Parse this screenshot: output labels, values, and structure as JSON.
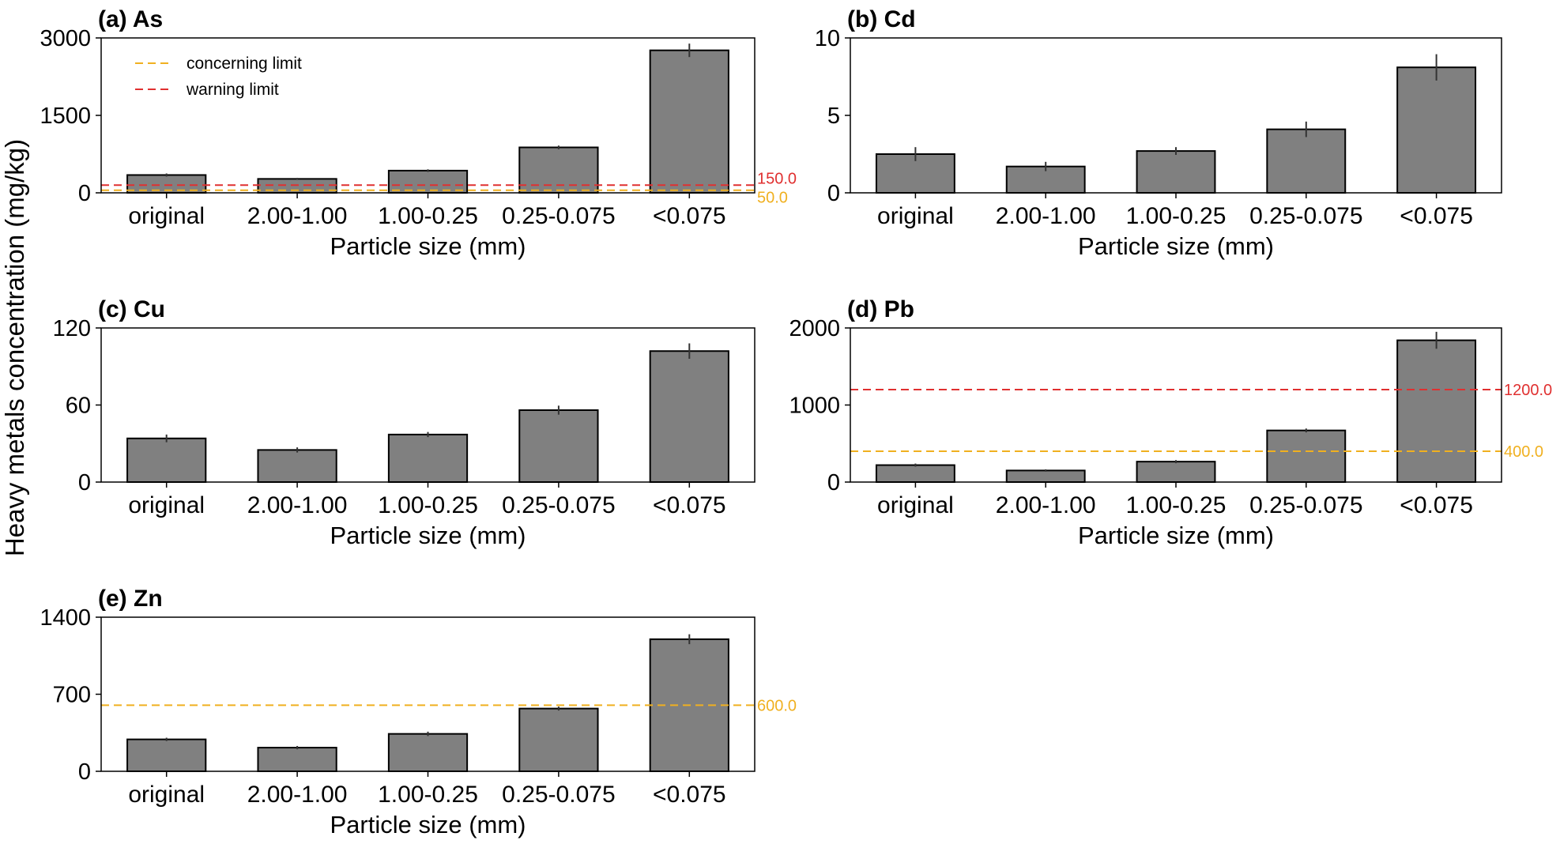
{
  "figure": {
    "ylabel": "Heavy metals concentration (mg/kg)"
  },
  "colors": {
    "bar": "#808080",
    "bar_edge": "#000000",
    "error_bar": "#333333",
    "concerning": "#f0b020",
    "warning": "#e03030"
  },
  "legend": {
    "items": [
      {
        "label": "concerning limit",
        "color": "#f0b020"
      },
      {
        "label": "warning limit",
        "color": "#e03030"
      }
    ]
  },
  "chart_data": [
    {
      "type": "bar",
      "title": "(a) As",
      "categories": [
        "original",
        "2.00-1.00",
        "1.00-0.25",
        "0.25-0.075",
        "<0.075"
      ],
      "values": [
        345,
        270,
        430,
        880,
        2760
      ],
      "errors": [
        30,
        20,
        25,
        35,
        130
      ],
      "xlabel": "Particle size (mm)",
      "ylim": [
        0,
        3000
      ],
      "yticks": [
        0,
        1500,
        3000
      ],
      "limits": [
        {
          "name": "warning limit",
          "value": 150,
          "label": "150.0",
          "color": "#e03030"
        },
        {
          "name": "concerning limit",
          "value": 50,
          "label": "50.0",
          "color": "#f0b020"
        }
      ]
    },
    {
      "type": "bar",
      "title": "(b) Cd",
      "categories": [
        "original",
        "2.00-1.00",
        "1.00-0.25",
        "0.25-0.075",
        "<0.075"
      ],
      "values": [
        2.5,
        1.7,
        2.7,
        4.1,
        8.1
      ],
      "errors": [
        0.45,
        0.3,
        0.25,
        0.5,
        0.85
      ],
      "xlabel": "Particle size (mm)",
      "ylim": [
        0,
        10
      ],
      "yticks": [
        0,
        5,
        10
      ],
      "limits": []
    },
    {
      "type": "bar",
      "title": "(c) Cu",
      "categories": [
        "original",
        "2.00-1.00",
        "1.00-0.25",
        "0.25-0.075",
        "<0.075"
      ],
      "values": [
        34,
        25,
        37,
        56,
        102
      ],
      "errors": [
        3,
        2,
        2,
        3.5,
        6
      ],
      "xlabel": "Particle size (mm)",
      "ylim": [
        0,
        120
      ],
      "yticks": [
        0,
        60,
        120
      ],
      "limits": []
    },
    {
      "type": "bar",
      "title": "(d) Pb",
      "categories": [
        "original",
        "2.00-1.00",
        "1.00-0.25",
        "0.25-0.075",
        "<0.075"
      ],
      "values": [
        220,
        150,
        265,
        670,
        1840
      ],
      "errors": [
        20,
        15,
        20,
        25,
        110
      ],
      "xlabel": "Particle size (mm)",
      "ylim": [
        0,
        2000
      ],
      "yticks": [
        0,
        1000,
        2000
      ],
      "limits": [
        {
          "name": "warning limit",
          "value": 1200,
          "label": "1200.0",
          "color": "#e03030"
        },
        {
          "name": "concerning limit",
          "value": 400,
          "label": "400.0",
          "color": "#f0b020"
        }
      ]
    },
    {
      "type": "bar",
      "title": "(e) Zn",
      "categories": [
        "original",
        "2.00-1.00",
        "1.00-0.25",
        "0.25-0.075",
        "<0.075"
      ],
      "values": [
        290,
        215,
        340,
        570,
        1200
      ],
      "errors": [
        15,
        15,
        20,
        18,
        45
      ],
      "xlabel": "Particle size (mm)",
      "ylim": [
        0,
        1400
      ],
      "yticks": [
        0,
        700,
        1400
      ],
      "limits": [
        {
          "name": "concerning limit",
          "value": 600,
          "label": "600.0",
          "color": "#f0b020"
        }
      ]
    }
  ]
}
